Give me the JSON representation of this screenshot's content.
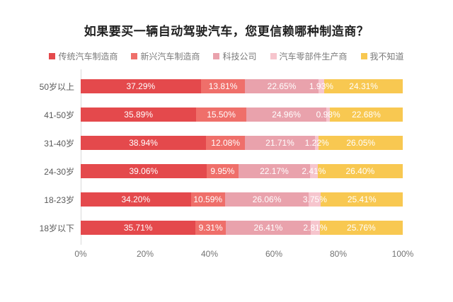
{
  "title": "如果要买一辆自动驾驶汽车，您更信赖哪种制造商？",
  "chart_data": {
    "type": "bar",
    "orientation": "horizontal-stacked",
    "title": "如果要买一辆自动驾驶汽车，您更信赖哪种制造商？",
    "legend_position": "top",
    "categories": [
      "50岁以上",
      "41-50岁",
      "31-40岁",
      "24-30岁",
      "18-23岁",
      "18岁以下"
    ],
    "series": [
      {
        "name": "传统汽车制造商",
        "color": "#e4494c",
        "values": [
          37.29,
          35.89,
          38.94,
          39.06,
          34.2,
          35.71
        ]
      },
      {
        "name": "新兴汽车制造商",
        "color": "#ef6f6a",
        "values": [
          13.81,
          15.5,
          12.08,
          9.95,
          10.59,
          9.31
        ]
      },
      {
        "name": "科技公司",
        "color": "#e9a2ac",
        "values": [
          22.65,
          24.96,
          21.71,
          22.17,
          26.06,
          26.41
        ]
      },
      {
        "name": "汽车零部件生产商",
        "color": "#f6c5cd",
        "values": [
          1.93,
          0.98,
          1.22,
          2.41,
          3.75,
          2.81
        ]
      },
      {
        "name": "我不知道",
        "color": "#f8c851",
        "values": [
          24.31,
          22.68,
          26.05,
          26.4,
          25.41,
          25.76
        ]
      }
    ],
    "value_suffix": "%",
    "value_decimals": 2,
    "xlim": [
      0,
      100
    ],
    "x_ticks": [
      "0%",
      "20%",
      "40%",
      "60%",
      "80%",
      "100%"
    ],
    "grid": false
  },
  "style_colors": {
    "axis_line": "#d9d9d9",
    "tick_label": "#737373",
    "category_label": "#595959",
    "legend_label": "#7a7a7a",
    "bar_value_label": "#ffffff",
    "title_text": "#1f1f1f"
  }
}
